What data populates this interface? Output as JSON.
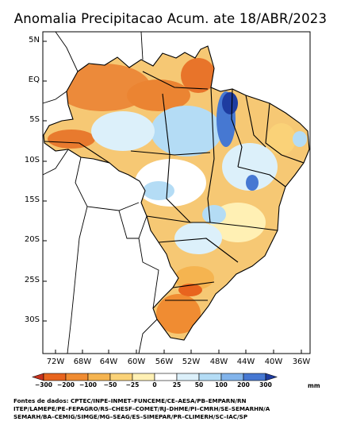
{
  "title": "Anomalia Precipitacao Acum. ate 18/ABR/2023",
  "y_ticks": [
    "5N",
    "EQ",
    "5S",
    "10S",
    "15S",
    "20S",
    "25S",
    "30S"
  ],
  "x_ticks": [
    "72W",
    "68W",
    "64W",
    "60W",
    "56W",
    "52W",
    "48W",
    "44W",
    "40W",
    "36W"
  ],
  "colorbar": {
    "labels": [
      "−300",
      "−200",
      "−100",
      "−50",
      "−25",
      "0",
      "25",
      "50",
      "100",
      "200",
      "300"
    ],
    "unit": "mm",
    "colors": [
      "#c8321e",
      "#e8641e",
      "#f08c32",
      "#f5b450",
      "#fad278",
      "#fff0b4",
      "#ffffff",
      "#dcf0fa",
      "#b4dcf5",
      "#82b4eb",
      "#4678d2",
      "#1e3ca0"
    ]
  },
  "sources": [
    "Fontes de dados: CPTEC/INPE–INMET–FUNCEME/CE–AESA/PB–EMPARN/RN",
    "ITEP/LAMEPE/PE–FEPAGRO/RS–CHESF–COMET/RJ–DHME/PI–CMRH/SE–SEMARHN/A",
    "SEMARH/BA–CEMIG/SIMGE/MG–SEAG/ES–SIMEPAR/PR–CLIMERH/SC–IAC/SP"
  ]
}
